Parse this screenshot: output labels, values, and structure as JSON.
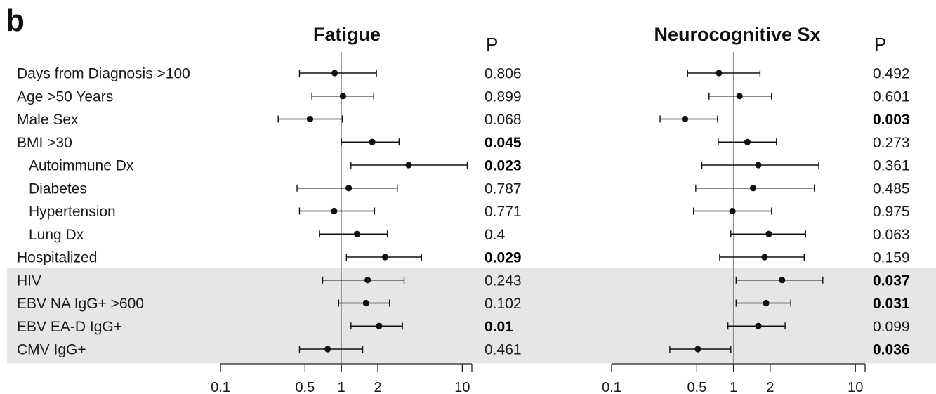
{
  "panel_label": "b",
  "p_header": "P",
  "rows": [
    {
      "label": "Days from Diagnosis >100",
      "indent": false,
      "shaded": false
    },
    {
      "label": "Age >50 Years",
      "indent": false,
      "shaded": false
    },
    {
      "label": "Male Sex",
      "indent": false,
      "shaded": false
    },
    {
      "label": "BMI >30",
      "indent": false,
      "shaded": false
    },
    {
      "label": "Autoimmune Dx",
      "indent": true,
      "shaded": false
    },
    {
      "label": "Diabetes",
      "indent": true,
      "shaded": false
    },
    {
      "label": "Hypertension",
      "indent": true,
      "shaded": false
    },
    {
      "label": "Lung Dx",
      "indent": true,
      "shaded": false
    },
    {
      "label": "Hospitalized",
      "indent": false,
      "shaded": false
    },
    {
      "label": "HIV",
      "indent": false,
      "shaded": true
    },
    {
      "label": "EBV NA IgG+ >600",
      "indent": false,
      "shaded": true
    },
    {
      "label": "EBV EA-D IgG+",
      "indent": false,
      "shaded": true
    },
    {
      "label": "CMV IgG+",
      "indent": false,
      "shaded": true
    }
  ],
  "colors": {
    "shade": "#e6e6e6",
    "axis": "#222222",
    "reference": "#8c8c8c",
    "point": "#111111"
  },
  "chart_data": [
    {
      "type": "forest",
      "title": "Fatigue",
      "x_scale": "log",
      "xlim": [
        0.1,
        12
      ],
      "ticks": [
        0.1,
        0.5,
        1,
        2,
        10
      ],
      "tick_labels": [
        "0.1",
        "0.5",
        "1",
        "2",
        "10"
      ],
      "reference_line": 1,
      "estimates": [
        0.88,
        1.03,
        0.55,
        1.8,
        3.6,
        1.15,
        0.87,
        1.35,
        2.3,
        1.65,
        1.6,
        2.05,
        0.77
      ],
      "lower": [
        0.45,
        0.57,
        0.3,
        1.0,
        1.2,
        0.43,
        0.45,
        0.66,
        1.1,
        0.7,
        0.95,
        1.2,
        0.45
      ],
      "upper": [
        1.95,
        1.85,
        1.02,
        3.0,
        11.0,
        2.9,
        1.88,
        2.4,
        4.6,
        3.3,
        2.5,
        3.2,
        1.5
      ],
      "p_values": [
        "0.806",
        "0.899",
        "0.068",
        "0.045",
        "0.023",
        "0.787",
        "0.771",
        "0.4",
        "0.029",
        "0.243",
        "0.102",
        "0.01",
        "0.461"
      ],
      "p_significant": [
        false,
        false,
        false,
        true,
        true,
        false,
        false,
        false,
        true,
        false,
        false,
        true,
        false
      ]
    },
    {
      "type": "forest",
      "title": "Neurocognitive Sx",
      "x_scale": "log",
      "xlim": [
        0.1,
        12
      ],
      "ticks": [
        0.1,
        0.5,
        1,
        2,
        10
      ],
      "tick_labels": [
        "0.1",
        "0.5",
        "1",
        "2",
        "10"
      ],
      "reference_line": 1,
      "estimates": [
        0.76,
        1.12,
        0.4,
        1.3,
        1.6,
        1.45,
        0.98,
        1.95,
        1.8,
        2.5,
        1.85,
        1.6,
        0.51
      ],
      "lower": [
        0.42,
        0.63,
        0.25,
        0.75,
        0.55,
        0.49,
        0.47,
        0.95,
        0.77,
        1.05,
        1.05,
        0.9,
        0.3
      ],
      "upper": [
        1.65,
        2.05,
        0.74,
        2.25,
        5.0,
        4.6,
        2.05,
        3.9,
        3.8,
        5.4,
        2.95,
        2.65,
        0.95
      ],
      "p_values": [
        "0.492",
        "0.601",
        "0.003",
        "0.273",
        "0.361",
        "0.485",
        "0.975",
        "0.063",
        "0.159",
        "0.037",
        "0.031",
        "0.099",
        "0.036"
      ],
      "p_significant": [
        false,
        false,
        true,
        false,
        false,
        false,
        false,
        false,
        false,
        true,
        true,
        false,
        true
      ]
    }
  ]
}
